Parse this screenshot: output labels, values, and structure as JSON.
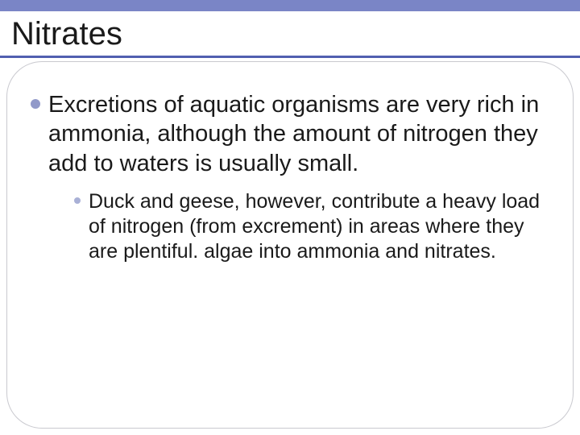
{
  "colors": {
    "band": "#7a85c6",
    "underline": "#515fb0",
    "title": "#1a1a1a",
    "body": "#1a1a1a",
    "bullet_main": "#9199c9",
    "bullet_sub": "#a9b0d6",
    "bubble_border": "#c9c9cf"
  },
  "slide": {
    "title": "Nitrates",
    "main_point": "Excretions of aquatic organisms are very rich in ammonia, although the amount of nitrogen they add to waters is usually small.",
    "sub_point": "Duck and geese, however, contribute a heavy load of nitrogen (from excrement) in areas where they are plentiful. algae into ammonia and nitrates."
  }
}
